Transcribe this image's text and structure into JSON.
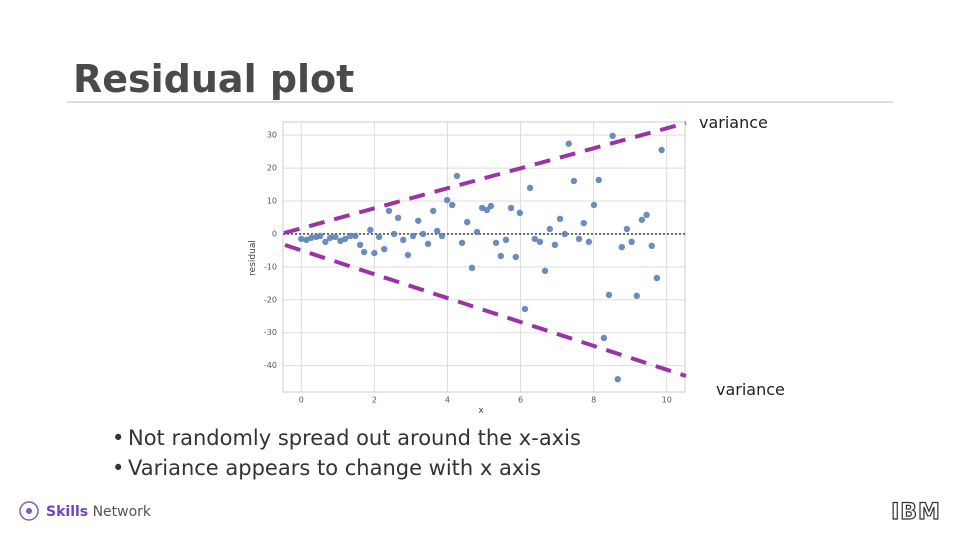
{
  "title": "Residual plot",
  "bullets": [
    "Not randomly spread out around the x-axis",
    "Variance appears to change with x axis"
  ],
  "footer": {
    "brand_bold": "Skills",
    "brand": "Network",
    "logo": "IBM"
  },
  "chart_data": {
    "type": "scatter",
    "xlabel": "x",
    "ylabel": "residual",
    "color": "#5b7fb8",
    "annotations": [
      "variance",
      "variance"
    ],
    "reference_line": 0,
    "grid": true,
    "xlim": [
      -0.5,
      10.5
    ],
    "ylim": [
      -48,
      34
    ],
    "xticks": [
      0,
      2,
      4,
      6,
      8,
      10
    ],
    "yticks": [
      -40,
      -30,
      -20,
      -10,
      0,
      10,
      20,
      30
    ],
    "x": [
      0.0,
      0.14,
      0.27,
      0.41,
      0.52,
      0.66,
      0.79,
      0.93,
      1.07,
      1.2,
      1.34,
      1.48,
      1.61,
      1.72,
      1.89,
      2.0,
      2.13,
      2.27,
      2.4,
      2.54,
      2.65,
      2.79,
      2.92,
      3.06,
      3.2,
      3.33,
      3.47,
      3.61,
      3.72,
      3.85,
      3.99,
      4.13,
      4.26,
      4.4,
      4.54,
      4.67,
      4.81,
      4.95,
      5.08,
      5.19,
      5.33,
      5.46,
      5.6,
      5.74,
      5.87,
      5.98,
      6.12,
      6.26,
      6.39,
      6.53,
      6.67,
      6.8,
      6.94,
      7.08,
      7.21,
      7.32,
      7.46,
      7.6,
      7.73,
      7.87,
      8.01,
      8.14,
      8.28,
      8.42,
      8.52,
      8.66,
      8.77,
      8.91,
      9.04,
      9.18,
      9.32,
      9.45,
      9.59,
      9.73,
      9.86
    ],
    "values": [
      -1.5,
      -1.8,
      -1.2,
      -0.9,
      -0.6,
      -2.4,
      -1.2,
      -0.9,
      -2.1,
      -1.5,
      -0.6,
      -0.6,
      -3.3,
      -5.5,
      1.2,
      -5.8,
      -0.9,
      -4.6,
      7.0,
      0,
      4.9,
      -1.8,
      -6.4,
      -0.6,
      4.0,
      0,
      -3.0,
      7.0,
      0.9,
      -0.6,
      10.3,
      8.8,
      17.6,
      -2.7,
      3.6,
      -10.3,
      0.6,
      7.9,
      7.3,
      8.5,
      -2.7,
      -6.7,
      -1.8,
      7.9,
      -7.0,
      6.4,
      -22.8,
      14.0,
      -1.5,
      -2.4,
      -11.2,
      1.5,
      -3.3,
      4.6,
      0,
      27.4,
      16.1,
      -1.5,
      3.3,
      -2.4,
      8.8,
      16.4,
      -31.6,
      -18.5,
      29.8,
      -44.1,
      -4.0,
      1.5,
      -2.4,
      -18.8,
      4.3,
      5.8,
      -3.6,
      -13.4,
      25.5
    ]
  }
}
